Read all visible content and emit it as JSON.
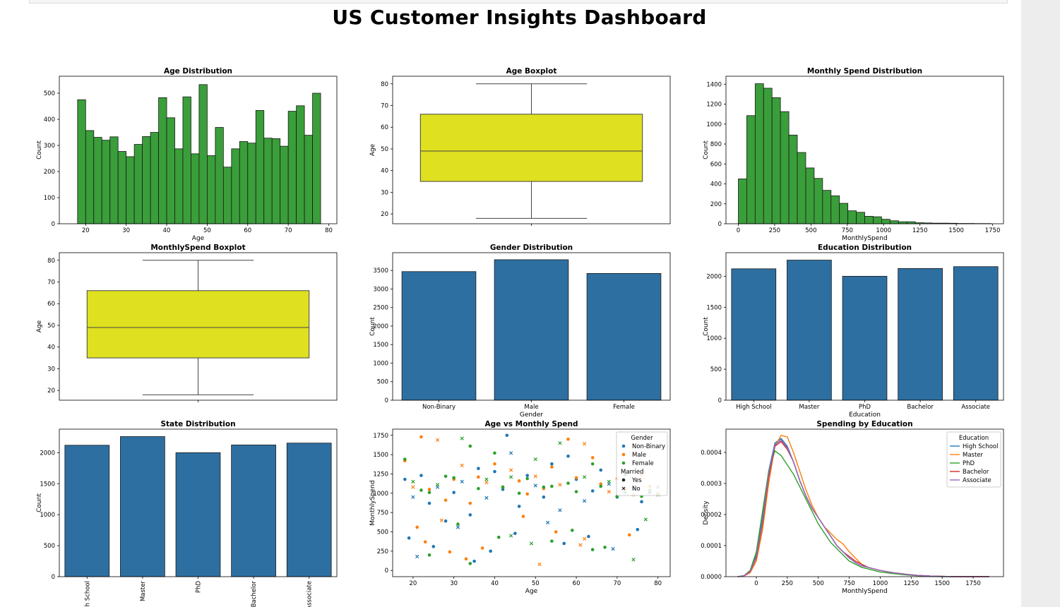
{
  "dashboard_title": "US Customer Insights Dashboard",
  "colors": {
    "hist_fill": "#3a9e3a",
    "box_fill": "#dfe01f",
    "bar_fill": "#2e6fa1",
    "series": [
      "#1f77b4",
      "#ff7f0e",
      "#2ca02c",
      "#d62728",
      "#9467bd"
    ]
  },
  "chart_data": [
    {
      "type": "bar",
      "subtype": "histogram",
      "title": "Age Distribution",
      "xlabel": "Age",
      "ylabel": "Count",
      "bin_start": 18,
      "bin_width": 2,
      "values": [
        475,
        357,
        331,
        320,
        333,
        277,
        257,
        304,
        334,
        350,
        483,
        406,
        287,
        486,
        268,
        533,
        261,
        369,
        217,
        287,
        315,
        309,
        434,
        328,
        326,
        297,
        431,
        452,
        339,
        500
      ],
      "xlim": [
        13.5,
        82
      ],
      "ylim": [
        0,
        565
      ],
      "xticks": [
        20,
        30,
        40,
        50,
        60,
        70,
        80
      ],
      "yticks": [
        0,
        100,
        200,
        300,
        400,
        500
      ]
    },
    {
      "type": "boxplot",
      "title": "Age Boxplot",
      "ylabel": "Age",
      "stats": {
        "whisker_low": 18,
        "q1": 35,
        "median": 49,
        "q3": 66,
        "whisker_high": 80
      },
      "ylim": [
        15.5,
        83.5
      ],
      "yticks": [
        20,
        30,
        40,
        50,
        60,
        70,
        80
      ]
    },
    {
      "type": "bar",
      "subtype": "histogram",
      "title": "Monthly Spend Distribution",
      "xlabel": "MonthlySpend",
      "ylabel": "Count",
      "bin_start": 0,
      "bin_width": 58,
      "values": [
        450,
        1085,
        1405,
        1360,
        1265,
        1125,
        890,
        715,
        560,
        455,
        335,
        280,
        205,
        130,
        115,
        75,
        70,
        45,
        30,
        20,
        20,
        10,
        8,
        6,
        6,
        5,
        3,
        3,
        2,
        2
      ],
      "xlim": [
        -85,
        1825
      ],
      "ylim": [
        0,
        1480
      ],
      "xticks": [
        0,
        250,
        500,
        750,
        1000,
        1250,
        1500,
        1750
      ],
      "yticks": [
        0,
        200,
        400,
        600,
        800,
        1000,
        1200,
        1400
      ]
    },
    {
      "type": "boxplot",
      "title": "MonthlySpend Boxplot",
      "ylabel": "Age",
      "stats": {
        "whisker_low": 18,
        "q1": 35,
        "median": 49,
        "q3": 66,
        "whisker_high": 80
      },
      "ylim": [
        15.5,
        83.5
      ],
      "yticks": [
        20,
        30,
        40,
        50,
        60,
        70,
        80
      ]
    },
    {
      "type": "bar",
      "title": "Gender Distribution",
      "xlabel": "Gender",
      "ylabel": "Count",
      "categories": [
        "Non-Binary",
        "Male",
        "Female"
      ],
      "values": [
        3470,
        3790,
        3420
      ],
      "ylim": [
        0,
        3980
      ],
      "yticks": [
        0,
        500,
        1000,
        1500,
        2000,
        2500,
        3000,
        3500
      ]
    },
    {
      "type": "bar",
      "title": "Education Distribution",
      "xlabel": "Education",
      "ylabel": "Count",
      "categories": [
        "High School",
        "Master",
        "PhD",
        "Bachelor",
        "Associate"
      ],
      "values": [
        2120,
        2260,
        2000,
        2125,
        2155
      ],
      "ylim": [
        0,
        2380
      ],
      "yticks": [
        0,
        500,
        1000,
        1500,
        2000
      ]
    },
    {
      "type": "bar",
      "title": "State Distribution",
      "ylabel": "Count",
      "categories": [
        "High School",
        "Master",
        "PhD",
        "Bachelor",
        "Associate"
      ],
      "values": [
        2120,
        2260,
        2000,
        2125,
        2155
      ],
      "ylim": [
        0,
        2380
      ],
      "yticks": [
        0,
        500,
        1000,
        1500,
        2000
      ],
      "xtick_rotation": 90
    },
    {
      "type": "scatter",
      "title": "Age vs Monthly Spend",
      "xlabel": "Age",
      "ylabel": "MonthlySpend",
      "xlim": [
        15,
        83
      ],
      "ylim": [
        -80,
        1830
      ],
      "xticks": [
        20,
        30,
        40,
        50,
        60,
        70,
        80
      ],
      "yticks": [
        0,
        250,
        500,
        750,
        1000,
        1250,
        1500,
        1750
      ],
      "hue_title": "Gender",
      "style_title": "Married",
      "legend_position": "top-right",
      "series": [
        {
          "name": "Non-Binary",
          "x": [
            18,
            20,
            22,
            24,
            26,
            28,
            30,
            32,
            34,
            36,
            38,
            40,
            42,
            44,
            46,
            48,
            50,
            52,
            54,
            56,
            58,
            60,
            62,
            64,
            66,
            68,
            70,
            72,
            74,
            76,
            78,
            80,
            19,
            25,
            31,
            39,
            45,
            53,
            57,
            63,
            69,
            75,
            43,
            21,
            35
          ],
          "y": [
            1180,
            950,
            1230,
            870,
            1080,
            640,
            1010,
            1150,
            720,
            1320,
            940,
            1280,
            1050,
            1520,
            830,
            1230,
            1100,
            950,
            1380,
            780,
            1480,
            1180,
            900,
            1030,
            1300,
            1120,
            950,
            1240,
            1060,
            890,
            1010,
            1080,
            420,
            310,
            560,
            250,
            480,
            620,
            350,
            440,
            280,
            530,
            1750,
            180,
            120
          ]
        },
        {
          "name": "Male",
          "x": [
            18,
            20,
            22,
            24,
            26,
            28,
            30,
            32,
            34,
            36,
            38,
            40,
            42,
            44,
            46,
            48,
            50,
            52,
            54,
            56,
            58,
            60,
            62,
            64,
            66,
            68,
            70,
            72,
            74,
            76,
            78,
            80,
            21,
            23,
            27,
            37,
            55,
            62,
            29,
            47,
            61,
            73,
            33,
            51
          ],
          "y": [
            1420,
            1080,
            1730,
            1050,
            1690,
            910,
            1180,
            1360,
            870,
            1210,
            1140,
            1380,
            1080,
            1300,
            1160,
            990,
            1220,
            1060,
            1340,
            1110,
            1700,
            1200,
            1640,
            1460,
            1120,
            1020,
            1190,
            1060,
            980,
            1240,
            1090,
            1000,
            560,
            370,
            650,
            290,
            500,
            410,
            240,
            700,
            330,
            460,
            150,
            80
          ]
        },
        {
          "name": "Female",
          "x": [
            18,
            20,
            22,
            24,
            26,
            28,
            30,
            32,
            34,
            36,
            38,
            40,
            42,
            44,
            46,
            48,
            50,
            52,
            54,
            56,
            58,
            60,
            62,
            64,
            66,
            68,
            70,
            72,
            74,
            76,
            78,
            80,
            31,
            41,
            49,
            59,
            67,
            77,
            24,
            34,
            44,
            54,
            64,
            74
          ],
          "y": [
            1440,
            1150,
            1040,
            1010,
            1110,
            1220,
            1200,
            1710,
            1610,
            1060,
            1180,
            1520,
            1080,
            1210,
            1000,
            1190,
            1440,
            1080,
            1090,
            1650,
            1130,
            1020,
            1210,
            1380,
            1090,
            1150,
            960,
            1010,
            1080,
            960,
            1040,
            980,
            600,
            430,
            350,
            520,
            300,
            660,
            200,
            90,
            450,
            380,
            270,
            140
          ]
        }
      ],
      "style_levels": [
        "Yes",
        "No"
      ]
    },
    {
      "type": "line",
      "subtype": "kde",
      "title": "Spending by Education",
      "xlabel": "MonthlySpend",
      "ylabel": "Density",
      "hue_title": "Education",
      "legend_position": "top-right",
      "xlim": [
        -245,
        1995
      ],
      "ylim": [
        0,
        0.000475
      ],
      "xticks": [
        0,
        250,
        500,
        750,
        1000,
        1250,
        1500,
        1750
      ],
      "yticks": [
        0.0,
        0.0001,
        0.0002,
        0.0003,
        0.0004
      ],
      "ytick_labels": [
        "0.0000",
        "0.0001",
        "0.0002",
        "0.0003",
        "0.0004"
      ],
      "x": [
        -150,
        -100,
        -50,
        0,
        50,
        100,
        150,
        200,
        250,
        300,
        350,
        400,
        450,
        500,
        550,
        600,
        650,
        700,
        750,
        800,
        850,
        900,
        950,
        1000,
        1100,
        1200,
        1300,
        1400,
        1500,
        1600,
        1700,
        1800,
        1880
      ],
      "series": [
        {
          "name": "High School",
          "values": [
            0,
            3e-06,
            1.8e-05,
            7e-05,
            0.00019,
            0.00034,
            0.00043,
            0.000445,
            0.00042,
            0.00037,
            0.00031,
            0.00026,
            0.00022,
            0.00019,
            0.00016,
            0.00013,
            0.0001,
            8e-05,
            6e-05,
            4.5e-05,
            3.5e-05,
            3e-05,
            2.5e-05,
            2e-05,
            1.3e-05,
            8e-06,
            4e-06,
            2e-06,
            1e-06,
            0,
            0,
            0,
            0
          ]
        },
        {
          "name": "Master",
          "values": [
            0,
            2e-06,
            1.2e-05,
            5e-05,
            0.00015,
            0.0003,
            0.00042,
            0.000455,
            0.00045,
            0.0004,
            0.00034,
            0.00028,
            0.00023,
            0.00019,
            0.00016,
            0.00014,
            0.00012,
            0.000105,
            8e-05,
            6e-05,
            4e-05,
            3e-05,
            2.5e-05,
            2e-05,
            1.3e-05,
            8e-06,
            4e-06,
            2e-06,
            1e-06,
            0,
            0,
            0,
            0
          ]
        },
        {
          "name": "PhD",
          "values": [
            0,
            3e-06,
            2e-05,
            8e-05,
            0.00021,
            0.00034,
            0.000405,
            0.00039,
            0.00036,
            0.00033,
            0.00029,
            0.00025,
            0.00021,
            0.00017,
            0.00014,
            0.00011,
            9e-05,
            7e-05,
            5e-05,
            4e-05,
            3e-05,
            2.5e-05,
            2e-05,
            1.5e-05,
            1e-05,
            6e-06,
            3e-06,
            1e-06,
            0,
            0,
            0,
            0,
            0
          ]
        },
        {
          "name": "Bachelor",
          "values": [
            0,
            3e-06,
            1.6e-05,
            6e-05,
            0.00017,
            0.00032,
            0.00042,
            0.000435,
            0.00041,
            0.00037,
            0.00031,
            0.00026,
            0.00022,
            0.00019,
            0.00016,
            0.00013,
            0.0001,
            8e-05,
            6.5e-05,
            5e-05,
            4e-05,
            3e-05,
            2.5e-05,
            2e-05,
            1.3e-05,
            8e-06,
            4e-06,
            2e-06,
            1e-06,
            0,
            0,
            0,
            0
          ]
        },
        {
          "name": "Associate",
          "values": [
            0,
            3e-06,
            1.7e-05,
            6.5e-05,
            0.00018,
            0.00033,
            0.000425,
            0.00044,
            0.000415,
            0.00037,
            0.00031,
            0.00026,
            0.00022,
            0.00019,
            0.00016,
            0.00013,
            0.0001,
            8e-05,
            6e-05,
            4.5e-05,
            3.5e-05,
            3e-05,
            2.5e-05,
            2e-05,
            1.3e-05,
            8e-06,
            4e-06,
            2e-06,
            1e-06,
            0,
            0,
            0,
            0
          ]
        }
      ]
    }
  ]
}
